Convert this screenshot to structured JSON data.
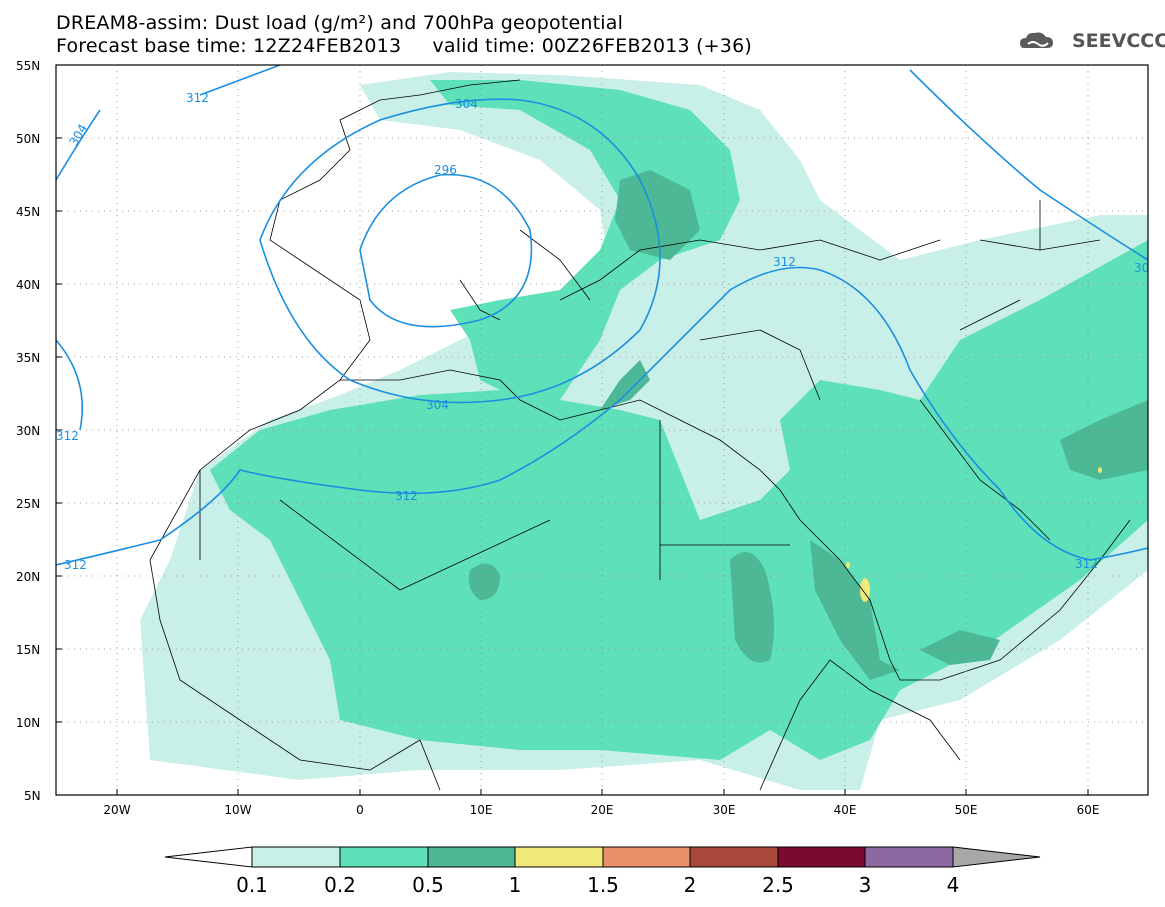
{
  "title": {
    "line1": "DREAM8-assim: Dust load (g/m²) and 700hPa geopotential",
    "line2": "Forecast base time: 12Z24FEB2013     valid time: 00Z26FEB2013 (+36)"
  },
  "logo": {
    "text": "SEEVCCC",
    "icon": "cloud-logo-icon",
    "color": "#5a5a5a"
  },
  "map": {
    "lon_range": [
      -25,
      65
    ],
    "lat_range": [
      5,
      55
    ],
    "lat_ticks": [
      "55N",
      "50N",
      "45N",
      "40N",
      "35N",
      "30N",
      "25N",
      "20N",
      "15N",
      "10N",
      "5N"
    ],
    "lon_ticks": [
      "20W",
      "10W",
      "0",
      "10E",
      "20E",
      "30E",
      "40E",
      "50E",
      "60E"
    ],
    "contour_color": "#1a8fe0",
    "contour_labels": [
      "312",
      "304",
      "304",
      "296",
      "312",
      "312",
      "304",
      "312",
      "312",
      "312",
      "30"
    ]
  },
  "colorbar": {
    "ticks": [
      "0.1",
      "0.2",
      "0.5",
      "1",
      "1.5",
      "2",
      "2.5",
      "3",
      "4"
    ],
    "colors": [
      "#ffffff",
      "#c8f0e8",
      "#5ee0b8",
      "#4cb896",
      "#f0e878",
      "#e8906a",
      "#a8483c",
      "#7a0a30",
      "#8a6aa0",
      "#a8a8a8"
    ]
  }
}
